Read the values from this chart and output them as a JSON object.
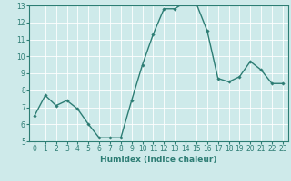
{
  "x": [
    0,
    1,
    2,
    3,
    4,
    5,
    6,
    7,
    8,
    9,
    10,
    11,
    12,
    13,
    14,
    15,
    16,
    17,
    18,
    19,
    20,
    21,
    22,
    23
  ],
  "y": [
    6.5,
    7.7,
    7.1,
    7.4,
    6.9,
    6.0,
    5.2,
    5.2,
    5.2,
    7.4,
    9.5,
    11.3,
    12.8,
    12.8,
    13.2,
    13.1,
    11.5,
    8.7,
    8.5,
    8.8,
    9.7,
    9.2,
    8.4,
    8.4
  ],
  "xlim": [
    -0.5,
    23.5
  ],
  "ylim": [
    5,
    13
  ],
  "yticks": [
    5,
    6,
    7,
    8,
    9,
    10,
    11,
    12,
    13
  ],
  "xticks": [
    0,
    1,
    2,
    3,
    4,
    5,
    6,
    7,
    8,
    9,
    10,
    11,
    12,
    13,
    14,
    15,
    16,
    17,
    18,
    19,
    20,
    21,
    22,
    23
  ],
  "xlabel": "Humidex (Indice chaleur)",
  "line_color": "#2d7d74",
  "marker": "D",
  "marker_size": 1.8,
  "line_width": 1.0,
  "bg_color": "#ceeaea",
  "plot_bg_color": "#ceeaea",
  "grid_color": "#ffffff",
  "grid_rcolor": "#f0d0d0",
  "tick_color": "#2d7d74",
  "label_color": "#2d7d74",
  "spine_color": "#2d7d74",
  "xlabel_fontsize": 6.5,
  "tick_fontsize": 5.5
}
